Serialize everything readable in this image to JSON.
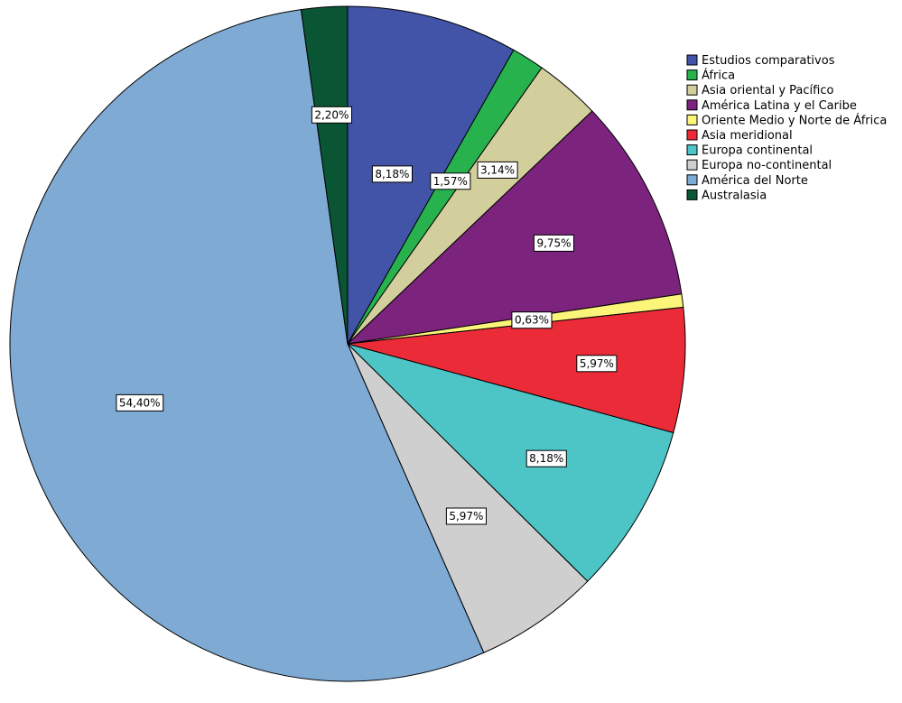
{
  "chart_data": {
    "type": "pie",
    "title": "",
    "legend_position": "top-right",
    "slices": [
      {
        "name": "Estudios comparativos",
        "value": 8.18,
        "label": "8,18%",
        "color": "#4154A8"
      },
      {
        "name": "África",
        "value": 1.57,
        "label": "1,57%",
        "color": "#27B24E"
      },
      {
        "name": "Asia oriental y Pacífico",
        "value": 3.14,
        "label": "3,14%",
        "color": "#D3CF9C"
      },
      {
        "name": "América Latina y el Caribe",
        "value": 9.75,
        "label": "9,75%",
        "color": "#7B237D"
      },
      {
        "name": "Oriente Medio y Norte de África",
        "value": 0.63,
        "label": "0,63%",
        "color": "#FBF57A"
      },
      {
        "name": "Asia meridional",
        "value": 5.97,
        "label": "5,97%",
        "color": "#EB2B38"
      },
      {
        "name": "Europa continental",
        "value": 8.18,
        "label": "8,18%",
        "color": "#4DC4C5"
      },
      {
        "name": "Europa no-continental",
        "value": 5.97,
        "label": "5,97%",
        "color": "#CFCFCF"
      },
      {
        "name": "América del Norte",
        "value": 54.4,
        "label": "54,40%",
        "color": "#7EAAD4"
      },
      {
        "name": "Australasia",
        "value": 2.2,
        "label": "2,20%",
        "color": "#0A5533"
      }
    ]
  }
}
